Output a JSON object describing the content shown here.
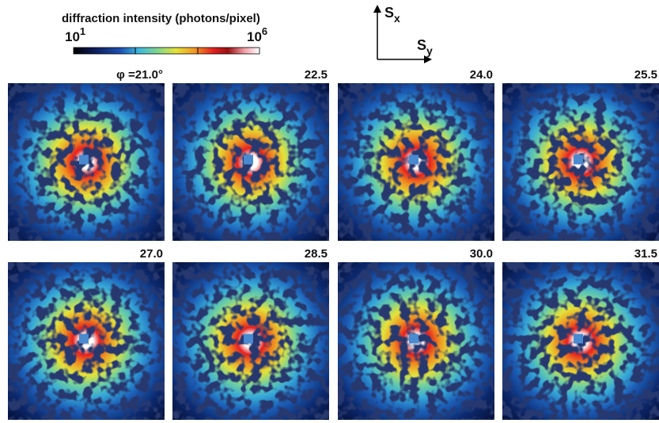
{
  "colorbar": {
    "title": "diffraction intensity (photons/pixel)",
    "min": {
      "base": "10",
      "exponent": "1"
    },
    "max": {
      "base": "10",
      "exponent": "6"
    }
  },
  "axes": {
    "vertical": {
      "symbol": "S",
      "subscript": "x"
    },
    "horizontal": {
      "symbol": "S",
      "subscript": "y"
    }
  },
  "panels": [
    {
      "label": "φ =21.0°"
    },
    {
      "label": "22.5"
    },
    {
      "label": "24.0"
    },
    {
      "label": "25.5"
    },
    {
      "label": "27.0"
    },
    {
      "label": "28.5"
    },
    {
      "label": "30.0"
    },
    {
      "label": "31.5"
    }
  ]
}
